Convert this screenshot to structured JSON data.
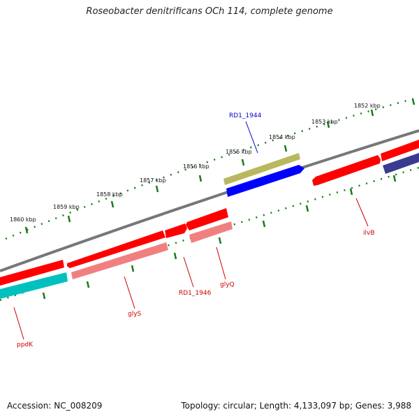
{
  "title": "Roseobacter denitrificans OCh 114, complete genome",
  "footer": {
    "accession": "Accession: NC_008209",
    "topology": "Topology: circular; Length: 4,133,097 bp; Genes: 3,988"
  },
  "kbp_labels": [
    "1852 kbp",
    "1853 kbp",
    "1854 kbp",
    "1855 kbp",
    "1856 kbp",
    "1857 kbp",
    "1858 kbp",
    "1859 kbp",
    "1860 kbp"
  ],
  "gene_labels": {
    "rd1_1944": "RD1_1944",
    "ilvb": "ilvB",
    "glyq": "glyQ",
    "rd1_1946": "RD1_1946",
    "glys": "glyS",
    "ppdk": "ppdK"
  },
  "colors": {
    "red_gene": "#ff0000",
    "pink_gene": "#f08080",
    "cyan_gene": "#00c0c0",
    "blue_gene": "#0000ff",
    "olive_gene": "#b8b860",
    "navy_gene": "#3a3a90",
    "backbone": "#777777",
    "tick": "#1a7a1a",
    "blue_label": "#0000cc",
    "red_label": "#cc0000"
  }
}
